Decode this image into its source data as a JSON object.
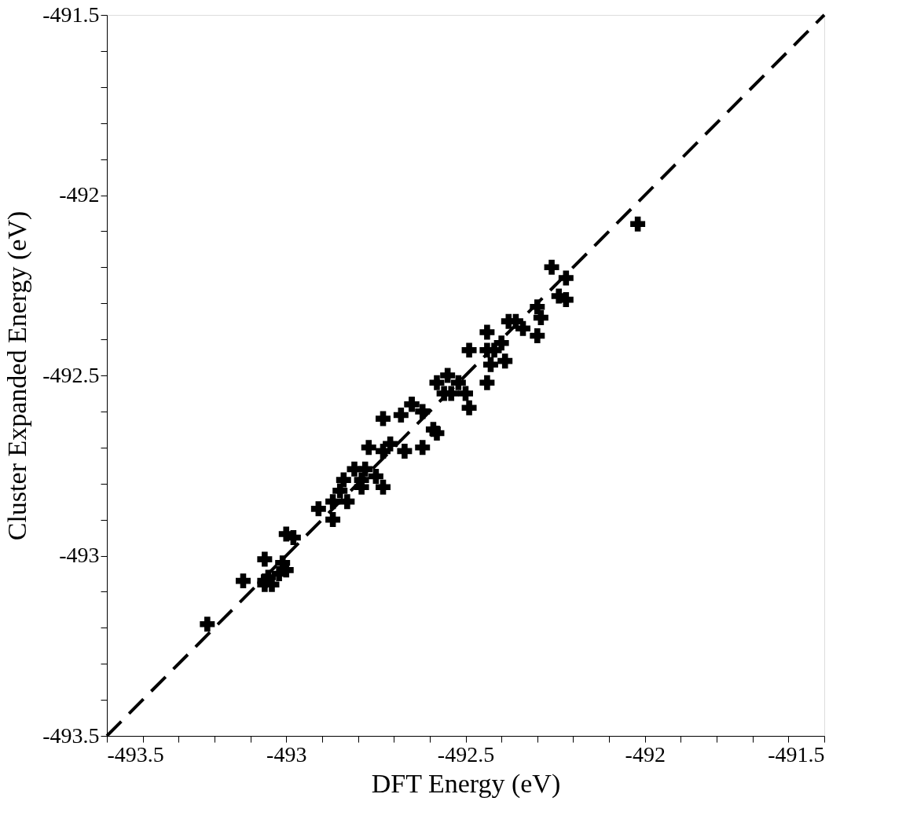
{
  "chart_data": {
    "type": "scatter",
    "xlabel": "DFT Energy (eV)",
    "ylabel": "Cluster Expanded Energy (eV)",
    "xlim": [
      -493.5,
      -491.5
    ],
    "ylim": [
      -493.5,
      -491.5
    ],
    "xticks": [
      -493.5,
      {
        "value": -493.4,
        "label": null
      },
      {
        "value": -493.3,
        "label": null
      },
      {
        "value": -493.2,
        "label": null
      },
      {
        "value": -493.1,
        "label": null
      },
      -493,
      {
        "value": -492.9,
        "label": null
      },
      {
        "value": -492.8,
        "label": null
      },
      {
        "value": -492.7,
        "label": null
      },
      {
        "value": -492.6,
        "label": null
      },
      -492.5,
      {
        "value": -492.4,
        "label": null
      },
      {
        "value": -492.3,
        "label": null
      },
      {
        "value": -492.2,
        "label": null
      },
      {
        "value": -492.1,
        "label": null
      },
      -492,
      {
        "value": -491.9,
        "label": null
      },
      {
        "value": -491.8,
        "label": null
      },
      {
        "value": -491.7,
        "label": null
      },
      {
        "value": -491.6,
        "label": null
      },
      -491.5
    ],
    "yticks": [
      -493.5,
      {
        "value": -493.4,
        "label": null
      },
      {
        "value": -493.3,
        "label": null
      },
      {
        "value": -493.2,
        "label": null
      },
      {
        "value": -493.1,
        "label": null
      },
      -493,
      {
        "value": -492.9,
        "label": null
      },
      {
        "value": -492.8,
        "label": null
      },
      {
        "value": -492.7,
        "label": null
      },
      {
        "value": -492.6,
        "label": null
      },
      -492.5,
      {
        "value": -492.4,
        "label": null
      },
      {
        "value": -492.3,
        "label": null
      },
      {
        "value": -492.2,
        "label": null
      },
      {
        "value": -492.1,
        "label": null
      },
      -492,
      {
        "value": -491.9,
        "label": null
      },
      {
        "value": -491.8,
        "label": null
      },
      {
        "value": -491.7,
        "label": null
      },
      {
        "value": -491.6,
        "label": null
      },
      -491.5
    ],
    "grid": false,
    "legend": false,
    "marker": "cross",
    "line_style": "dashed",
    "series": [
      {
        "color": "#000000",
        "x": [
          -493.22,
          -493.12,
          -493.0,
          -492.98,
          -493.06,
          -493.01,
          -493.0,
          -493.06,
          -493.05,
          -493.04,
          -493.02,
          -493.06,
          -492.02,
          -492.26,
          -492.22,
          -492.24,
          -492.22,
          -492.29,
          -492.3,
          -492.3,
          -492.38,
          -492.34,
          -492.4,
          -492.42,
          -492.39,
          -492.36,
          -492.44,
          -492.49,
          -492.44,
          -492.43,
          -492.44,
          -492.55,
          -492.52,
          -492.5,
          -492.58,
          -492.49,
          -492.54,
          -492.56,
          -492.62,
          -492.65,
          -492.59,
          -492.73,
          -492.65,
          -492.68,
          -492.58,
          -492.77,
          -492.71,
          -492.73,
          -492.62,
          -492.67,
          -492.81,
          -492.78,
          -492.73,
          -492.84,
          -492.79,
          -492.85,
          -492.87,
          -492.83,
          -492.91,
          -492.87,
          -492.79,
          -492.75
        ],
        "values": [
          -493.19,
          -493.07,
          -492.94,
          -492.95,
          -493.01,
          -493.02,
          -493.04,
          -493.07,
          -493.06,
          -493.08,
          -493.05,
          -493.08,
          -492.08,
          -492.2,
          -492.23,
          -492.28,
          -492.29,
          -492.34,
          -492.31,
          -492.39,
          -492.35,
          -492.37,
          -492.41,
          -492.43,
          -492.46,
          -492.35,
          -492.38,
          -492.43,
          -492.43,
          -492.47,
          -492.52,
          -492.5,
          -492.52,
          -492.55,
          -492.52,
          -492.59,
          -492.55,
          -492.55,
          -492.6,
          -492.58,
          -492.65,
          -492.62,
          -492.58,
          -492.61,
          -492.66,
          -492.7,
          -492.69,
          -492.71,
          -492.7,
          -492.71,
          -492.76,
          -492.76,
          -492.81,
          -492.79,
          -492.81,
          -492.82,
          -492.85,
          -492.85,
          -492.87,
          -492.9,
          -492.79,
          -492.78
        ]
      },
      {
        "type": "line",
        "marker": "none",
        "color": "#000000",
        "x": [
          -493.5,
          -491.5
        ],
        "values": [
          -493.5,
          -491.5
        ]
      }
    ]
  }
}
